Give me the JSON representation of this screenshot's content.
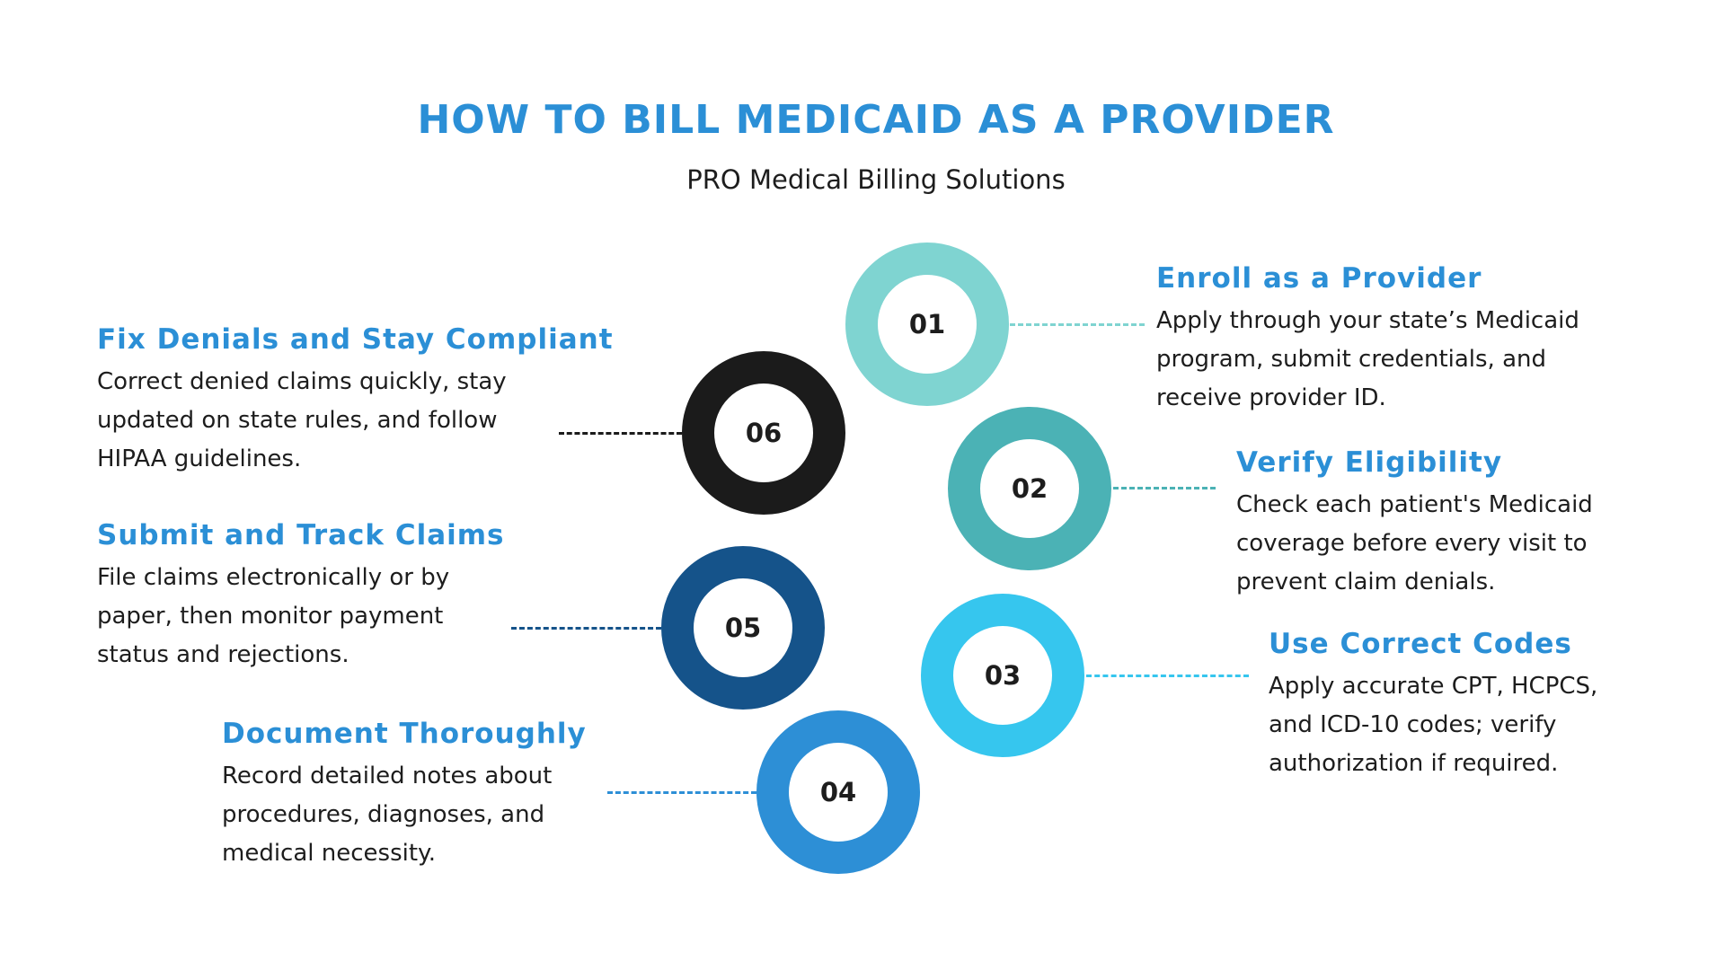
{
  "title": "HOW TO BILL MEDICAID AS A PROVIDER",
  "subtitle": "PRO Medical Billing Solutions",
  "steps": [
    {
      "number": "01",
      "color": "#7fd4d1",
      "heading": "Enroll as a Provider",
      "lines": [
        "Apply through your state’s Medicaid",
        "program, submit credentials, and",
        "receive provider ID."
      ]
    },
    {
      "number": "02",
      "color": "#4bb2b5",
      "heading": "Verify Eligibility",
      "lines": [
        "Check each patient's Medicaid",
        "coverage before every visit to",
        "prevent claim denials."
      ]
    },
    {
      "number": "03",
      "color": "#36c6ee",
      "heading": "Use Correct Codes",
      "lines": [
        "Apply accurate CPT, HCPCS,",
        "and ICD-10 codes; verify",
        "authorization if required."
      ]
    },
    {
      "number": "04",
      "color": "#2d8fd6",
      "heading": "Document Thoroughly",
      "lines": [
        "Record detailed notes about",
        "procedures, diagnoses, and",
        "medical necessity."
      ]
    },
    {
      "number": "05",
      "color": "#15538a",
      "heading": "Submit and Track Claims",
      "lines": [
        "File claims electronically or by",
        "paper, then monitor payment",
        "status and rejections."
      ]
    },
    {
      "number": "06",
      "color": "#1b1b1b",
      "heading": "Fix Denials and Stay Compliant",
      "lines": [
        "Correct denied claims quickly, stay",
        "updated on state rules, and follow",
        "HIPAA guidelines."
      ]
    }
  ]
}
